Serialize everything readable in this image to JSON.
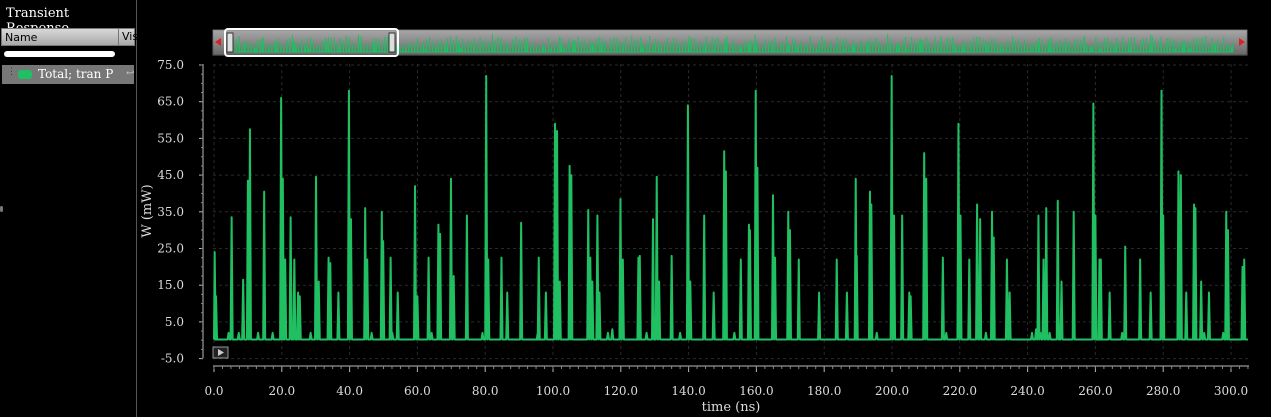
{
  "panel": {
    "title": "Transient Response",
    "col_name": "Name",
    "col_vis": "Vis",
    "trace_label": "Total; tran P"
  },
  "chart_data": {
    "type": "line",
    "xlabel": "time (ns)",
    "ylabel": "W (mW)",
    "xlim": [
      0,
      305
    ],
    "ylim": [
      -5,
      75
    ],
    "x_ticks": [
      "0.0",
      "20.0",
      "40.0",
      "60.0",
      "80.0",
      "100.0",
      "120.0",
      "140.0",
      "160.0",
      "180.0",
      "200.0",
      "220.0",
      "240.0",
      "260.0",
      "280.0",
      "300.0"
    ],
    "y_ticks": [
      "75.0",
      "65.0",
      "55.0",
      "45.0",
      "35.0",
      "25.0",
      "15.0",
      "5.0",
      "-5.0"
    ],
    "grid": true,
    "line_color": "#1fbf62",
    "baseline": 0.2,
    "series": [
      {
        "name": "Total; tran P",
        "spikes": [
          [
            0.2,
            24
          ],
          [
            0.6,
            12
          ],
          [
            4.3,
            2
          ],
          [
            5.2,
            33.5
          ],
          [
            7.3,
            2
          ],
          [
            8.6,
            16.5
          ],
          [
            10,
            43.5
          ],
          [
            10.6,
            57.5
          ],
          [
            13,
            2
          ],
          [
            14.8,
            40.5
          ],
          [
            17.3,
            2
          ],
          [
            19.8,
            66
          ],
          [
            20.3,
            44
          ],
          [
            21,
            22
          ],
          [
            22.6,
            33.5
          ],
          [
            23.7,
            22
          ],
          [
            24.8,
            13
          ],
          [
            25.3,
            12
          ],
          [
            28.5,
            2
          ],
          [
            30.1,
            44.5
          ],
          [
            30.9,
            16
          ],
          [
            33.8,
            22.5
          ],
          [
            34.3,
            21
          ],
          [
            36.7,
            13
          ],
          [
            39.8,
            68
          ],
          [
            40.4,
            33
          ],
          [
            44.6,
            36
          ],
          [
            45.2,
            22
          ],
          [
            46.5,
            2
          ],
          [
            49.5,
            35
          ],
          [
            49.9,
            27
          ],
          [
            52.1,
            22.5
          ],
          [
            52.6,
            2
          ],
          [
            54.2,
            13
          ],
          [
            59.3,
            42
          ],
          [
            60,
            12
          ],
          [
            63.3,
            22.5
          ],
          [
            64.2,
            2
          ],
          [
            66.2,
            31.5
          ],
          [
            66.7,
            29
          ],
          [
            69.9,
            44
          ],
          [
            70.7,
            17.5
          ],
          [
            74.6,
            34
          ],
          [
            79.2,
            2
          ],
          [
            80.3,
            72
          ],
          [
            80.9,
            22
          ],
          [
            84.8,
            22.5
          ],
          [
            86.5,
            13
          ],
          [
            90.6,
            32
          ],
          [
            95.5,
            2
          ],
          [
            95.8,
            22.5
          ],
          [
            97.9,
            13
          ],
          [
            100.6,
            59
          ],
          [
            101.2,
            57
          ],
          [
            102,
            16
          ],
          [
            104.9,
            47.5
          ],
          [
            105.4,
            45
          ],
          [
            110.4,
            35.5
          ],
          [
            111,
            22.5
          ],
          [
            111.6,
            16
          ],
          [
            113.1,
            34
          ],
          [
            113.7,
            13
          ],
          [
            116.2,
            2
          ],
          [
            117.5,
            3
          ],
          [
            119.9,
            38.5
          ],
          [
            120.6,
            22
          ],
          [
            125.2,
            22.5
          ],
          [
            125.6,
            23
          ],
          [
            127.6,
            2
          ],
          [
            129.5,
            33
          ],
          [
            130.6,
            44.5
          ],
          [
            131.3,
            16
          ],
          [
            135,
            23
          ],
          [
            137.5,
            2
          ],
          [
            139.8,
            64
          ],
          [
            140.5,
            16
          ],
          [
            144.6,
            34
          ],
          [
            147.4,
            13
          ],
          [
            150.5,
            51.5
          ],
          [
            151,
            46
          ],
          [
            153.5,
            2
          ],
          [
            155.4,
            22
          ],
          [
            157.8,
            31.5
          ],
          [
            158.1,
            30
          ],
          [
            159.8,
            68
          ],
          [
            160.3,
            47
          ],
          [
            164.9,
            39.5
          ],
          [
            165.5,
            22.5
          ],
          [
            169.4,
            35
          ],
          [
            169.9,
            30
          ],
          [
            172.5,
            22
          ],
          [
            178.5,
            13
          ],
          [
            183.7,
            22
          ],
          [
            186.7,
            13
          ],
          [
            189.3,
            44
          ],
          [
            189.6,
            23
          ],
          [
            193.5,
            40.5
          ],
          [
            193.9,
            37
          ],
          [
            195.5,
            2
          ],
          [
            199.9,
            72
          ],
          [
            200.6,
            34
          ],
          [
            203,
            34
          ],
          [
            205.1,
            13
          ],
          [
            205.5,
            12
          ],
          [
            209.5,
            51
          ],
          [
            210.1,
            44
          ],
          [
            215,
            22.5
          ],
          [
            216,
            2
          ],
          [
            219.6,
            59
          ],
          [
            220.2,
            34
          ],
          [
            222.8,
            22
          ],
          [
            225.1,
            37
          ],
          [
            226,
            33
          ],
          [
            227.7,
            2
          ],
          [
            229.5,
            35
          ],
          [
            230,
            28
          ],
          [
            233.9,
            22
          ],
          [
            234.7,
            13
          ],
          [
            241.3,
            2
          ],
          [
            242.5,
            3
          ],
          [
            243.2,
            34
          ],
          [
            243.8,
            2
          ],
          [
            244.7,
            22
          ],
          [
            245.5,
            36
          ],
          [
            246.5,
            2
          ],
          [
            248.9,
            38
          ],
          [
            250,
            16
          ],
          [
            253.6,
            35
          ],
          [
            259.4,
            64.5
          ],
          [
            260,
            34
          ],
          [
            261.2,
            22
          ],
          [
            261.6,
            22
          ],
          [
            264.2,
            13
          ],
          [
            267.9,
            2
          ],
          [
            268.8,
            25.5
          ],
          [
            273.2,
            22
          ],
          [
            276.3,
            13
          ],
          [
            279.5,
            68
          ],
          [
            280,
            34
          ],
          [
            284.5,
            46
          ],
          [
            285.2,
            45
          ],
          [
            286.8,
            13
          ],
          [
            289.1,
            37
          ],
          [
            289.5,
            36
          ],
          [
            291.2,
            16
          ],
          [
            292.1,
            2
          ],
          [
            293.5,
            13
          ],
          [
            297.7,
            2
          ],
          [
            298.6,
            35
          ],
          [
            299.1,
            30
          ],
          [
            303.4,
            20
          ],
          [
            303.9,
            22
          ]
        ]
      }
    ]
  }
}
